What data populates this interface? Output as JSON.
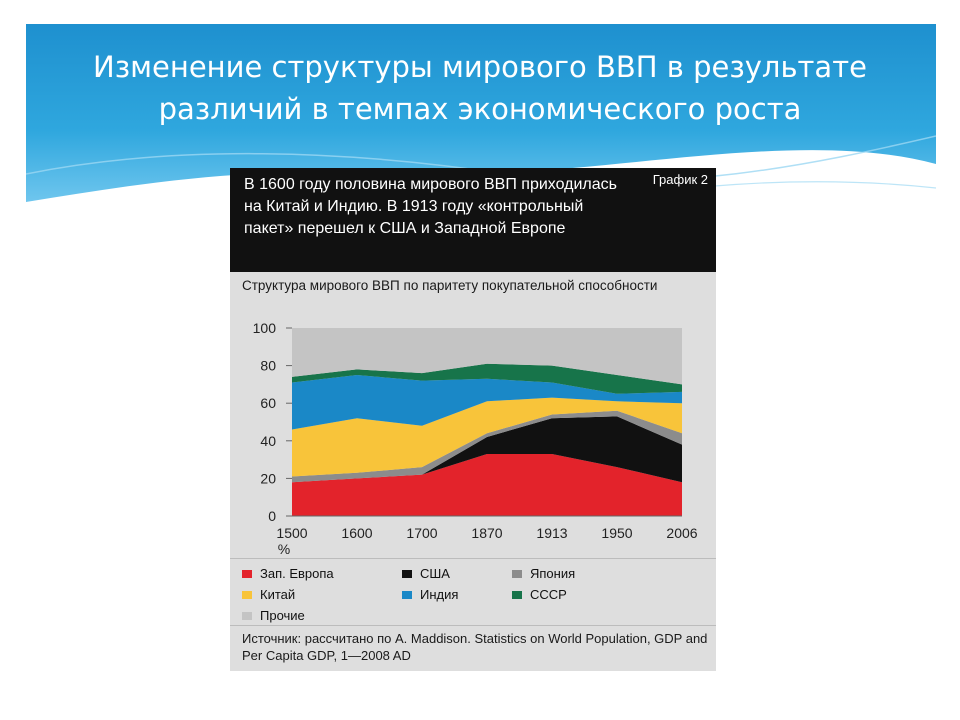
{
  "slide": {
    "title": "Изменение структуры мирового ВВП в результате различий в темпах экономического роста"
  },
  "figure": {
    "headline": "В 1600 году половина мирового ВВП приходилась на Китай и Индию. В 1913 году «контрольный пакет» перешел к США и Западной Европе",
    "tag": "График 2",
    "subtitle": "Структура мирового ВВП по паритету покупательной способности",
    "source": "Источник: рассчитано по A. Maddison. Statistics on World Population, GDP and Per Capita GDP, 1—2008 AD"
  },
  "chart_data": {
    "type": "area",
    "stacked": true,
    "x": [
      "1500",
      "1600",
      "1700",
      "1870",
      "1913",
      "1950",
      "2006"
    ],
    "x_unit": "%",
    "ylim": [
      0,
      100
    ],
    "yticks": [
      0,
      20,
      40,
      60,
      80,
      100
    ],
    "series": [
      {
        "name": "Зап. Европа",
        "color": "#e3232b",
        "values": [
          18,
          20,
          22,
          33,
          33,
          26,
          18
        ]
      },
      {
        "name": "США",
        "color": "#111111",
        "values": [
          0,
          0,
          0,
          9,
          19,
          27,
          20
        ]
      },
      {
        "name": "Япония",
        "color": "#8c8c8c",
        "values": [
          3,
          3,
          4,
          2,
          2,
          3,
          6
        ]
      },
      {
        "name": "Китай",
        "color": "#f8c43a",
        "values": [
          25,
          29,
          22,
          17,
          9,
          5,
          16
        ]
      },
      {
        "name": "Индия",
        "color": "#1a88c7",
        "values": [
          25,
          23,
          24,
          12,
          8,
          4,
          6
        ]
      },
      {
        "name": "СССР",
        "color": "#17744a",
        "values": [
          3,
          3,
          4,
          8,
          9,
          10,
          4
        ]
      },
      {
        "name": "Прочие",
        "color": "#c4c4c4",
        "values": [
          26,
          22,
          24,
          19,
          20,
          25,
          30
        ]
      }
    ]
  }
}
